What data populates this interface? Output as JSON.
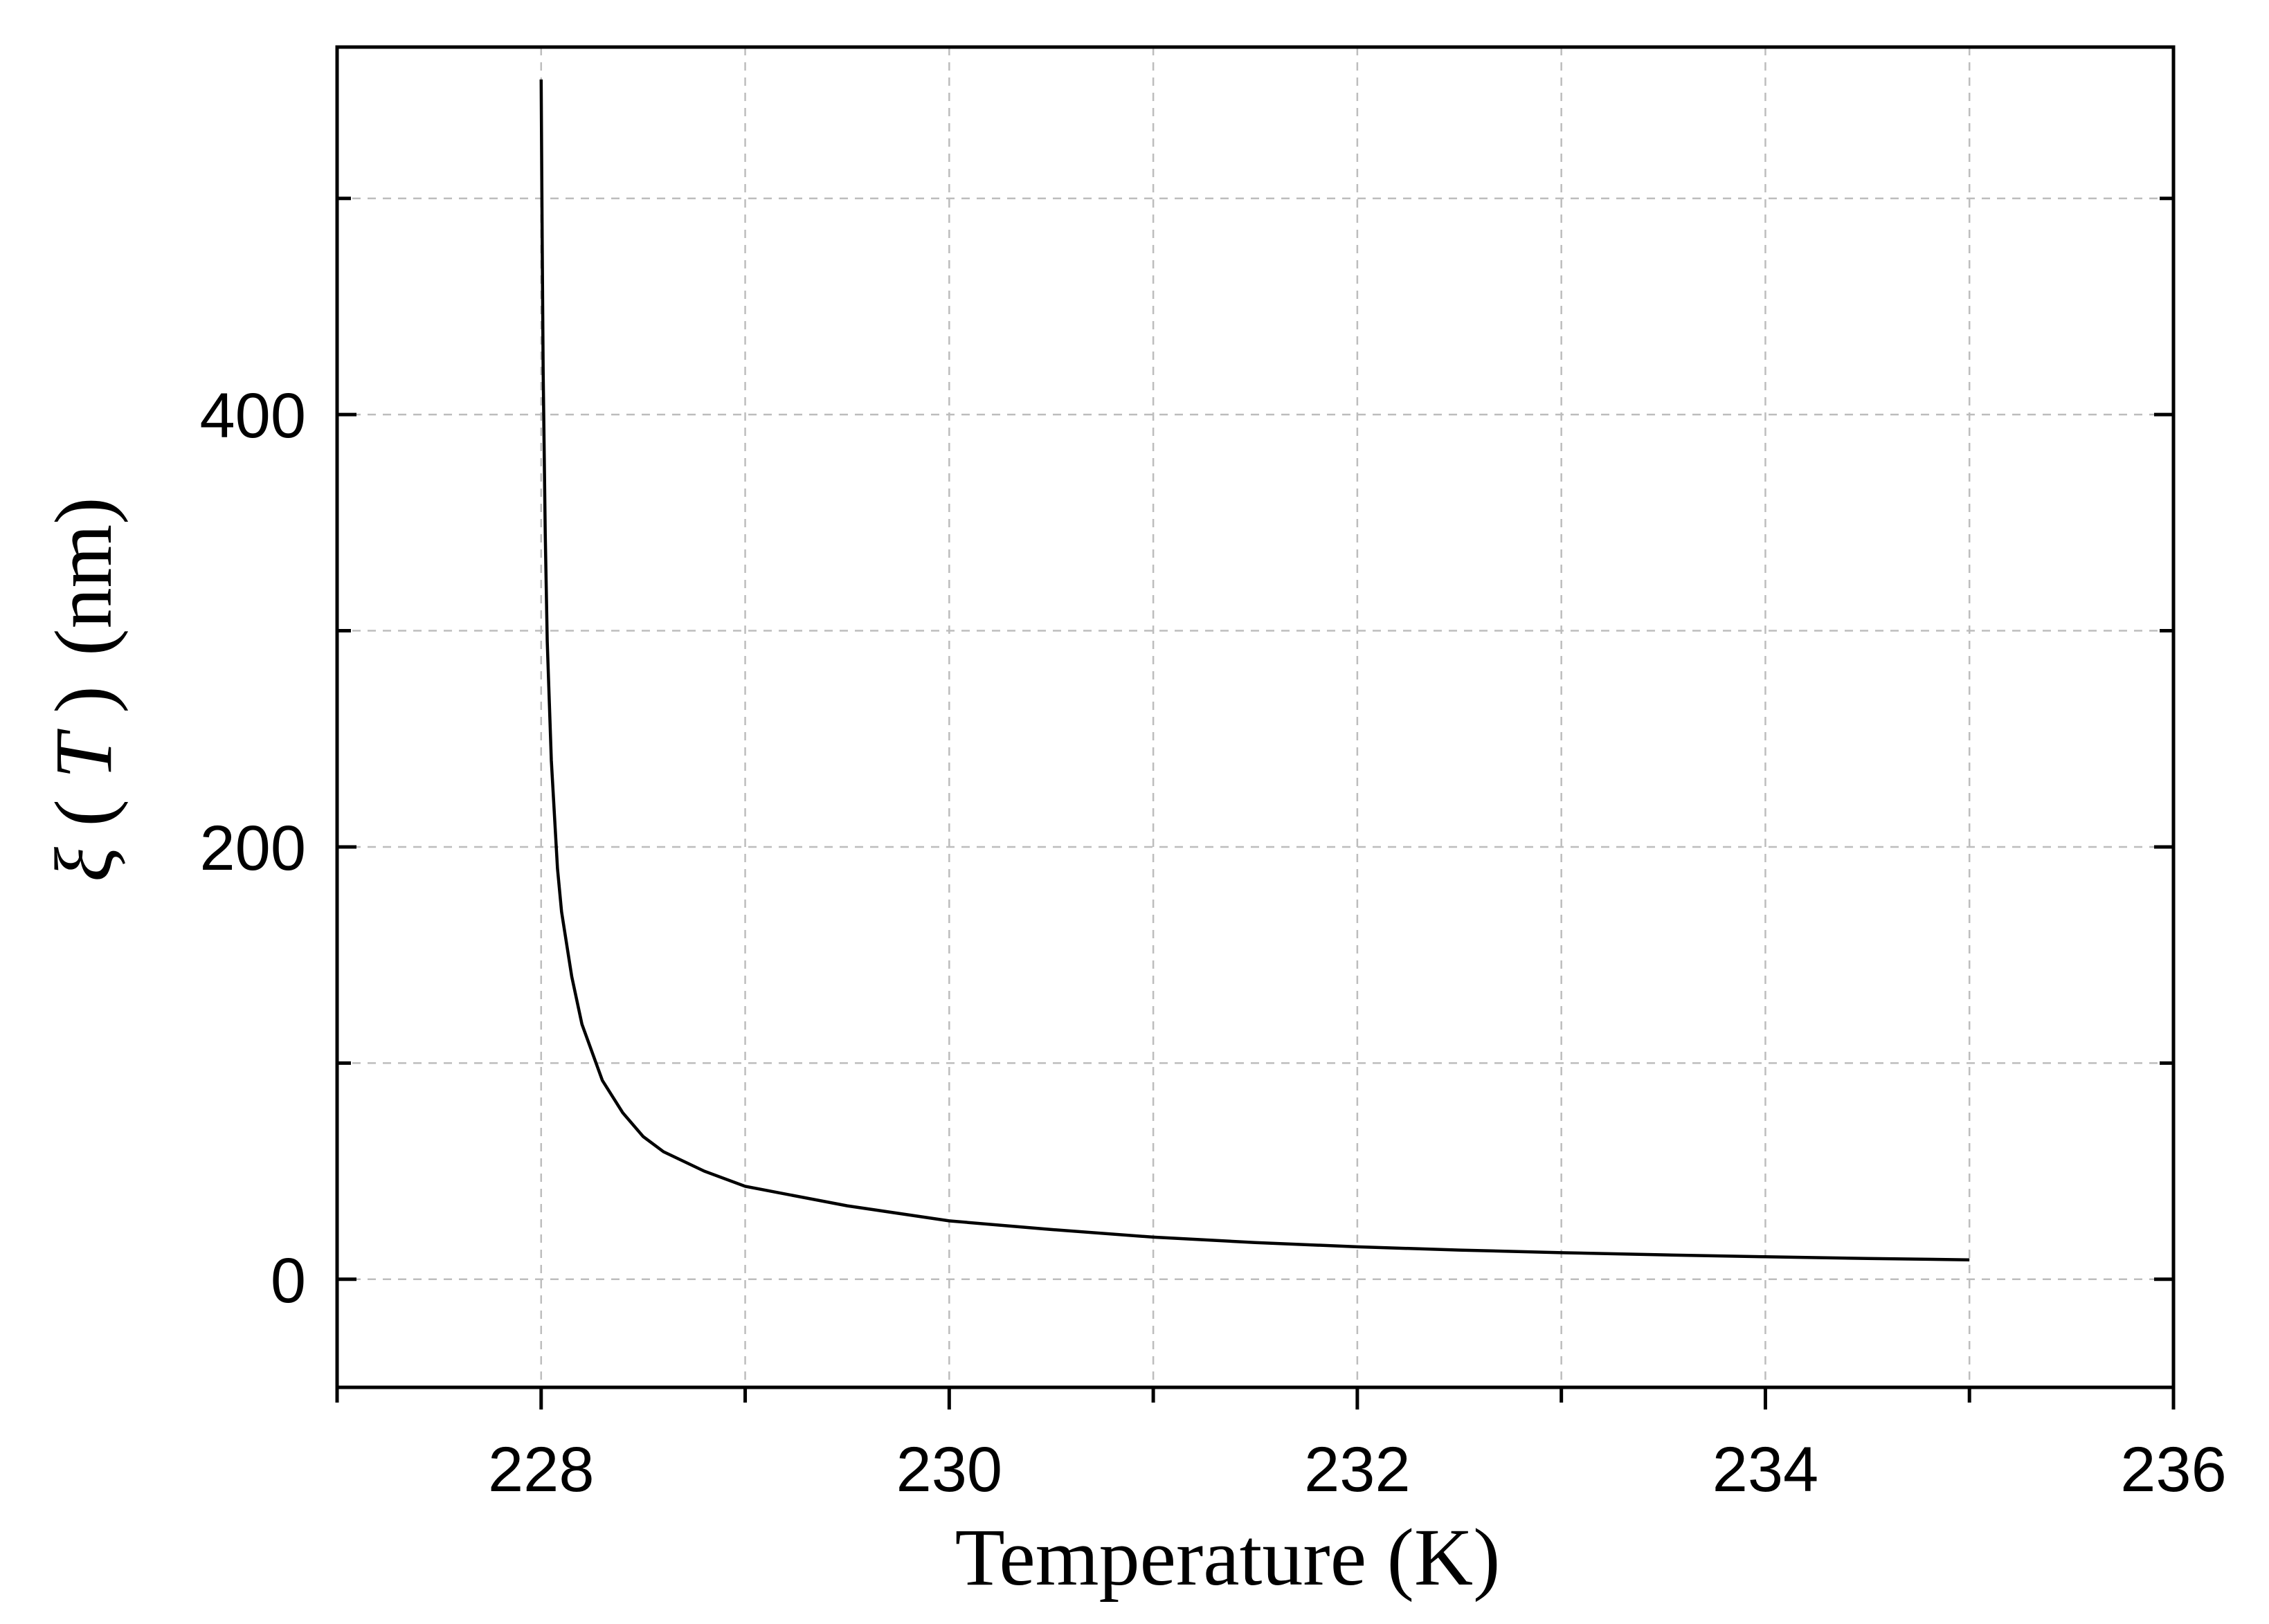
{
  "chart_data": {
    "type": "line",
    "title": "",
    "xlabel": "Temperature (K)",
    "ylabel": {
      "symbol": "ξ",
      "open_paren": "(",
      "variable": "T",
      "close_paren": ")",
      "unit": "(nm)"
    },
    "xlim": [
      227,
      236
    ],
    "ylim": [
      -50,
      570
    ],
    "x_ticks": [
      228,
      230,
      232,
      234,
      236
    ],
    "x_tick_labels": [
      "228",
      "230",
      "232",
      "234",
      "236"
    ],
    "x_minor_ticks": [
      227,
      229,
      231,
      233,
      235
    ],
    "y_ticks": [
      0,
      200,
      400
    ],
    "y_tick_labels": [
      "0",
      "200",
      "400"
    ],
    "y_minor_ticks": [
      100,
      300,
      500
    ],
    "grid": true,
    "legend": "none",
    "series": [
      {
        "color": "#000000",
        "x": [
          228.0,
          228.005,
          228.01,
          228.02,
          228.03,
          228.05,
          228.08,
          228.1,
          228.15,
          228.2,
          228.3,
          228.4,
          228.5,
          228.6,
          228.8,
          229.0,
          229.5,
          230.0,
          230.5,
          231.0,
          231.5,
          232.0,
          232.5,
          233.0,
          233.5,
          234.0,
          234.5,
          235.0
        ],
        "y": [
          555,
          480,
          420,
          345,
          295,
          240,
          190,
          170,
          140,
          118,
          92,
          77,
          66,
          59,
          50,
          43,
          34,
          27,
          23,
          19.5,
          17,
          15,
          13.5,
          12.3,
          11.3,
          10.4,
          9.6,
          9.0
        ]
      }
    ]
  }
}
